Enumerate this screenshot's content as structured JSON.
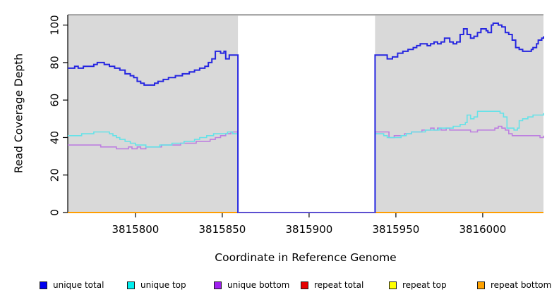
{
  "figure": {
    "x_axis_title": "Coordinate in Reference Genome",
    "y_axis_title": "Read Coverage Depth"
  },
  "chart_data": {
    "type": "line",
    "subtype": "step-coverage-plot",
    "title": "",
    "xlabel": "Coordinate in Reference Genome",
    "ylabel": "Read Coverage Depth",
    "xlim": [
      3815761,
      3816035
    ],
    "ylim": [
      0,
      105.5
    ],
    "x_ticks": [
      3815800,
      3815850,
      3815900,
      3815950,
      3816000
    ],
    "x_tick_labels": [
      "3815800",
      "3815850",
      "3815900",
      "3815950",
      "3816000"
    ],
    "y_ticks": [
      0,
      20,
      40,
      60,
      80,
      100
    ],
    "y_tick_labels": [
      "0",
      "20",
      "40",
      "60",
      "80",
      "100"
    ],
    "grid": false,
    "panel_bg": "#d9d9d9",
    "panel_top_border": "#8f8f8f",
    "mask_region": {
      "x1": 3815859,
      "x2": 3815938,
      "color": "#ffffff"
    },
    "zero_overlay": {
      "x1": 3815859,
      "x2": 3815938,
      "y": 0,
      "color": "#5b4fd1"
    },
    "series": [
      {
        "name": "repeat total",
        "line_color": "#e60000",
        "width": 2,
        "points": [
          [
            3815761,
            0
          ],
          [
            3816035,
            0
          ]
        ]
      },
      {
        "name": "repeat top",
        "line_color": "#f5f500",
        "width": 2,
        "points": [
          [
            3815761,
            0
          ],
          [
            3816035,
            0
          ]
        ]
      },
      {
        "name": "repeat bottom",
        "line_color": "#ff9e00",
        "width": 2,
        "points": [
          [
            3815761,
            0
          ],
          [
            3816035,
            0
          ]
        ]
      },
      {
        "name": "unique bottom",
        "line_color": "#bd7fe0",
        "width": 1.6,
        "points": [
          [
            3815761,
            36
          ],
          [
            3815770,
            36
          ],
          [
            3815776,
            36
          ],
          [
            3815780,
            35
          ],
          [
            3815785,
            35
          ],
          [
            3815789,
            34
          ],
          [
            3815794,
            34
          ],
          [
            3815796,
            35
          ],
          [
            3815798,
            34
          ],
          [
            3815801,
            35
          ],
          [
            3815803,
            34
          ],
          [
            3815806,
            35
          ],
          [
            3815811,
            35
          ],
          [
            3815815,
            36
          ],
          [
            3815822,
            36
          ],
          [
            3815826,
            37
          ],
          [
            3815831,
            37
          ],
          [
            3815835,
            38
          ],
          [
            3815839,
            38
          ],
          [
            3815843,
            39
          ],
          [
            3815846,
            40
          ],
          [
            3815849,
            41
          ],
          [
            3815852,
            42
          ],
          [
            3815855,
            43
          ],
          [
            3815859,
            0
          ],
          [
            3815938,
            43
          ],
          [
            3815943,
            43
          ],
          [
            3815946,
            40
          ],
          [
            3815949,
            41
          ],
          [
            3815953,
            41
          ],
          [
            3815955,
            42
          ],
          [
            3815959,
            43
          ],
          [
            3815962,
            43
          ],
          [
            3815965,
            44
          ],
          [
            3815968,
            44
          ],
          [
            3815970,
            45
          ],
          [
            3815972,
            44
          ],
          [
            3815974,
            45
          ],
          [
            3815976,
            44
          ],
          [
            3815979,
            45
          ],
          [
            3815981,
            44
          ],
          [
            3815986,
            44
          ],
          [
            3815990,
            44
          ],
          [
            3815993,
            43
          ],
          [
            3815997,
            44
          ],
          [
            3816005,
            44
          ],
          [
            3816007,
            45
          ],
          [
            3816009,
            46
          ],
          [
            3816011,
            45
          ],
          [
            3816013,
            44
          ],
          [
            3816015,
            42
          ],
          [
            3816017,
            41
          ],
          [
            3816024,
            41
          ],
          [
            3816030,
            41
          ],
          [
            3816033,
            40
          ],
          [
            3816035,
            41
          ]
        ]
      },
      {
        "name": "unique top",
        "line_color": "#66e2e8",
        "width": 1.6,
        "points": [
          [
            3815761,
            41
          ],
          [
            3815766,
            41
          ],
          [
            3815769,
            42
          ],
          [
            3815773,
            42
          ],
          [
            3815776,
            43
          ],
          [
            3815782,
            43
          ],
          [
            3815785,
            42
          ],
          [
            3815787,
            41
          ],
          [
            3815789,
            40
          ],
          [
            3815791,
            39
          ],
          [
            3815794,
            38
          ],
          [
            3815797,
            37
          ],
          [
            3815800,
            36
          ],
          [
            3815804,
            36
          ],
          [
            3815806,
            35
          ],
          [
            3815810,
            35
          ],
          [
            3815814,
            36
          ],
          [
            3815818,
            36
          ],
          [
            3815821,
            37
          ],
          [
            3815825,
            37
          ],
          [
            3815828,
            38
          ],
          [
            3815831,
            38
          ],
          [
            3815834,
            39
          ],
          [
            3815837,
            40
          ],
          [
            3815841,
            41
          ],
          [
            3815845,
            42
          ],
          [
            3815850,
            42
          ],
          [
            3815853,
            43
          ],
          [
            3815856,
            42
          ],
          [
            3815859,
            0
          ],
          [
            3815938,
            42
          ],
          [
            3815943,
            41
          ],
          [
            3815945,
            40
          ],
          [
            3815949,
            40
          ],
          [
            3815953,
            41
          ],
          [
            3815956,
            42
          ],
          [
            3815959,
            43
          ],
          [
            3815963,
            43
          ],
          [
            3815967,
            44
          ],
          [
            3815971,
            44
          ],
          [
            3815975,
            45
          ],
          [
            3815979,
            45
          ],
          [
            3815983,
            46
          ],
          [
            3815987,
            47
          ],
          [
            3815990,
            48
          ],
          [
            3815991,
            52
          ],
          [
            3815993,
            50
          ],
          [
            3815995,
            51
          ],
          [
            3815997,
            54
          ],
          [
            3816006,
            54
          ],
          [
            3816010,
            53
          ],
          [
            3816012,
            51
          ],
          [
            3816014,
            45
          ],
          [
            3816018,
            44
          ],
          [
            3816020,
            45
          ],
          [
            3816021,
            49
          ],
          [
            3816023,
            50
          ],
          [
            3816026,
            51
          ],
          [
            3816029,
            52
          ],
          [
            3816033,
            52
          ],
          [
            3816035,
            53
          ]
        ]
      },
      {
        "name": "unique total",
        "line_color": "#2626e0",
        "width": 2,
        "points": [
          [
            3815761,
            77
          ],
          [
            3815765,
            78
          ],
          [
            3815767,
            77
          ],
          [
            3815770,
            78
          ],
          [
            3815774,
            78
          ],
          [
            3815776,
            79
          ],
          [
            3815778,
            80
          ],
          [
            3815782,
            79
          ],
          [
            3815785,
            78
          ],
          [
            3815788,
            77
          ],
          [
            3815791,
            76
          ],
          [
            3815794,
            74
          ],
          [
            3815797,
            73
          ],
          [
            3815799,
            72
          ],
          [
            3815801,
            70
          ],
          [
            3815803,
            69
          ],
          [
            3815805,
            68
          ],
          [
            3815811,
            69
          ],
          [
            3815813,
            70
          ],
          [
            3815816,
            71
          ],
          [
            3815819,
            72
          ],
          [
            3815823,
            73
          ],
          [
            3815827,
            74
          ],
          [
            3815831,
            75
          ],
          [
            3815834,
            76
          ],
          [
            3815837,
            77
          ],
          [
            3815840,
            78
          ],
          [
            3815842,
            80
          ],
          [
            3815844,
            82
          ],
          [
            3815846,
            86
          ],
          [
            3815849,
            85
          ],
          [
            3815851,
            86
          ],
          [
            3815852,
            82
          ],
          [
            3815854,
            84
          ],
          [
            3815859,
            0
          ],
          [
            3815938,
            84
          ],
          [
            3815943,
            84
          ],
          [
            3815945,
            82
          ],
          [
            3815948,
            83
          ],
          [
            3815951,
            85
          ],
          [
            3815954,
            86
          ],
          [
            3815957,
            87
          ],
          [
            3815960,
            88
          ],
          [
            3815962,
            89
          ],
          [
            3815964,
            90
          ],
          [
            3815968,
            89
          ],
          [
            3815970,
            90
          ],
          [
            3815972,
            91
          ],
          [
            3815974,
            90
          ],
          [
            3815976,
            91
          ],
          [
            3815978,
            93
          ],
          [
            3815981,
            91
          ],
          [
            3815983,
            90
          ],
          [
            3815985,
            91
          ],
          [
            3815987,
            95
          ],
          [
            3815989,
            98
          ],
          [
            3815991,
            95
          ],
          [
            3815993,
            93
          ],
          [
            3815995,
            94
          ],
          [
            3815997,
            96
          ],
          [
            3815999,
            98
          ],
          [
            3816002,
            97
          ],
          [
            3816003,
            96
          ],
          [
            3816005,
            100
          ],
          [
            3816006,
            101
          ],
          [
            3816009,
            100
          ],
          [
            3816011,
            99
          ],
          [
            3816013,
            96
          ],
          [
            3816015,
            95
          ],
          [
            3816017,
            92
          ],
          [
            3816019,
            88
          ],
          [
            3816021,
            87
          ],
          [
            3816023,
            86
          ],
          [
            3816028,
            87
          ],
          [
            3816029,
            88
          ],
          [
            3816031,
            90
          ],
          [
            3816032,
            92
          ],
          [
            3816034,
            93
          ],
          [
            3816035,
            94
          ]
        ]
      }
    ],
    "legend": [
      {
        "label": "unique total",
        "color": "#0000ee"
      },
      {
        "label": "unique top",
        "color": "#00eeee"
      },
      {
        "label": "unique bottom",
        "color": "#a020f0"
      },
      {
        "label": "repeat total",
        "color": "#e60000"
      },
      {
        "label": "repeat top",
        "color": "#ffff00"
      },
      {
        "label": "repeat bottom",
        "color": "#ffa200"
      }
    ],
    "legend_position": "bottom"
  }
}
